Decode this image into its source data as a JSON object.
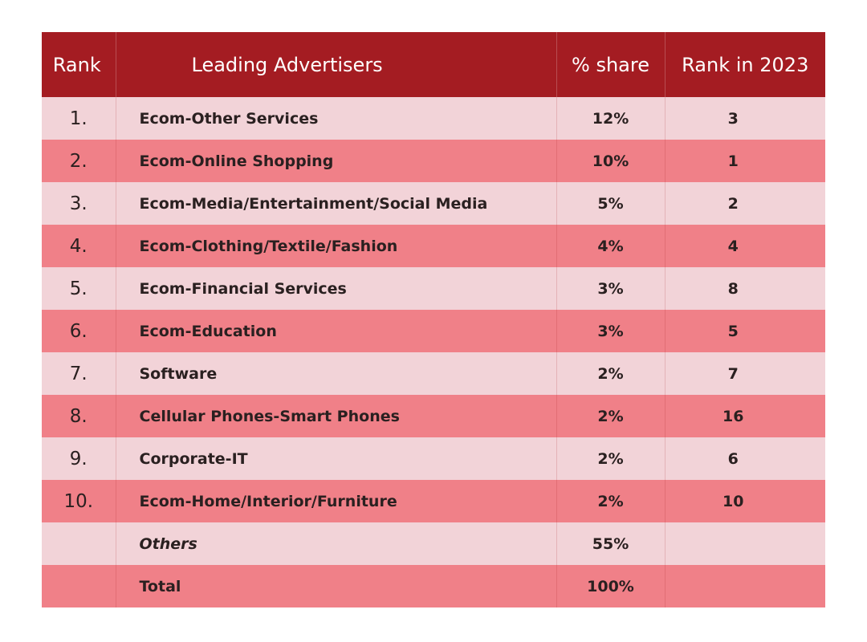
{
  "chart_data": {
    "type": "table",
    "columns": [
      "Rank",
      "Leading Advertisers",
      "% share",
      "Rank in 2023"
    ],
    "rows": [
      {
        "rank": "1.",
        "advertiser": "Ecom-Other Services",
        "share": "12%",
        "rank_2023": "3"
      },
      {
        "rank": "2.",
        "advertiser": "Ecom-Online Shopping",
        "share": "10%",
        "rank_2023": "1"
      },
      {
        "rank": "3.",
        "advertiser": "Ecom-Media/Entertainment/Social Media",
        "share": "5%",
        "rank_2023": "2"
      },
      {
        "rank": "4.",
        "advertiser": "Ecom-Clothing/Textile/Fashion",
        "share": "4%",
        "rank_2023": "4"
      },
      {
        "rank": "5.",
        "advertiser": "Ecom-Financial Services",
        "share": "3%",
        "rank_2023": "8"
      },
      {
        "rank": "6.",
        "advertiser": "Ecom-Education",
        "share": "3%",
        "rank_2023": "5"
      },
      {
        "rank": "7.",
        "advertiser": "Software",
        "share": "2%",
        "rank_2023": "7"
      },
      {
        "rank": "8.",
        "advertiser": "Cellular Phones-Smart Phones",
        "share": "2%",
        "rank_2023": "16"
      },
      {
        "rank": "9.",
        "advertiser": "Corporate-IT",
        "share": "2%",
        "rank_2023": "6"
      },
      {
        "rank": "10.",
        "advertiser": "Ecom-Home/Interior/Furniture",
        "share": "2%",
        "rank_2023": "10"
      }
    ],
    "summary_rows": [
      {
        "label": "Others",
        "share": "55%"
      },
      {
        "label": "Total",
        "share": "100%"
      }
    ]
  },
  "colors": {
    "header": "#a41c22",
    "row_light": "#f2d3d8",
    "row_dark": "#f08088"
  }
}
